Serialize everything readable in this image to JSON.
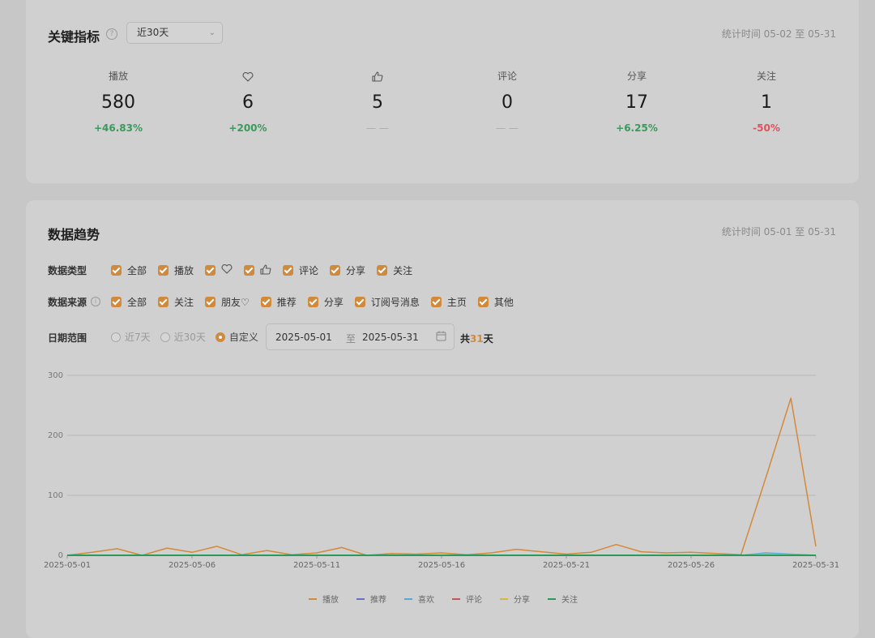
{
  "key_metrics": {
    "title": "关键指标",
    "period_select": "近30天",
    "stat_time": "统计时间 05-02 至 05-31",
    "items": [
      {
        "label": "播放",
        "icon": "",
        "value": "580",
        "change": "+46.83%",
        "trend": "up"
      },
      {
        "label": "",
        "icon": "heart-icon",
        "value": "6",
        "change": "+200%",
        "trend": "up"
      },
      {
        "label": "",
        "icon": "thumbs-up-icon",
        "value": "5",
        "change": "— —",
        "trend": "flat"
      },
      {
        "label": "评论",
        "icon": "",
        "value": "0",
        "change": "— —",
        "trend": "flat"
      },
      {
        "label": "分享",
        "icon": "",
        "value": "17",
        "change": "+6.25%",
        "trend": "up"
      },
      {
        "label": "关注",
        "icon": "",
        "value": "1",
        "change": "-50%",
        "trend": "down"
      }
    ]
  },
  "trend": {
    "title": "数据趋势",
    "stat_time": "统计时间 05-01 至 05-31",
    "data_type_label": "数据类型",
    "data_types": [
      "全部",
      "播放",
      "",
      "",
      "评论",
      "分享",
      "关注"
    ],
    "data_source_label": "数据来源",
    "data_sources": [
      "全部",
      "关注",
      "朋友♡",
      "推荐",
      "分享",
      "订阅号消息",
      "主页",
      "其他"
    ],
    "date_range_label": "日期范围",
    "range_options": [
      "近7天",
      "近30天",
      "自定义"
    ],
    "selected_range": "自定义",
    "start_date": "2025-05-01",
    "to_label": "至",
    "end_date": "2025-05-31",
    "total_prefix": "共",
    "total_days": "31",
    "total_suffix": "天"
  },
  "chart_data": {
    "type": "line",
    "ylim": [
      0,
      300
    ],
    "yticks": [
      0,
      100,
      200,
      300
    ],
    "x_tick_labels": [
      "2025-05-01",
      "2025-05-06",
      "2025-05-11",
      "2025-05-16",
      "2025-05-21",
      "2025-05-26",
      "2025-05-31"
    ],
    "x": [
      "2025-05-01",
      "2025-05-02",
      "2025-05-03",
      "2025-05-04",
      "2025-05-05",
      "2025-05-06",
      "2025-05-07",
      "2025-05-08",
      "2025-05-09",
      "2025-05-10",
      "2025-05-11",
      "2025-05-12",
      "2025-05-13",
      "2025-05-14",
      "2025-05-15",
      "2025-05-16",
      "2025-05-17",
      "2025-05-18",
      "2025-05-19",
      "2025-05-20",
      "2025-05-21",
      "2025-05-22",
      "2025-05-23",
      "2025-05-24",
      "2025-05-25",
      "2025-05-26",
      "2025-05-27",
      "2025-05-28",
      "2025-05-29",
      "2025-05-30",
      "2025-05-31"
    ],
    "grid": true,
    "legend_position": "bottom",
    "series": [
      {
        "name": "播放",
        "color": "#d4883a",
        "values": [
          0,
          5,
          11,
          0,
          12,
          5,
          15,
          1,
          8,
          1,
          4,
          13,
          0,
          3,
          2,
          4,
          1,
          4,
          10,
          6,
          2,
          5,
          18,
          6,
          4,
          5,
          3,
          1,
          130,
          262,
          15
        ]
      },
      {
        "name": "推荐",
        "color": "#6b6fc4",
        "values": [
          0,
          0,
          0,
          0,
          0,
          0,
          0,
          0,
          0,
          0,
          0,
          0,
          0,
          0,
          0,
          0,
          0,
          0,
          0,
          0,
          0,
          0,
          0,
          0,
          0,
          0,
          0,
          0,
          0,
          1,
          0
        ]
      },
      {
        "name": "喜欢",
        "color": "#59a9d6",
        "values": [
          0,
          0,
          0,
          0,
          0,
          0,
          0,
          0,
          0,
          0,
          0,
          0,
          0,
          0,
          0,
          0,
          0,
          0,
          0,
          0,
          0,
          0,
          0,
          0,
          0,
          0,
          0,
          0,
          4,
          2,
          0
        ]
      },
      {
        "name": "评论",
        "color": "#c85555",
        "values": [
          0,
          0,
          0,
          0,
          0,
          0,
          0,
          0,
          0,
          0,
          0,
          0,
          0,
          0,
          0,
          0,
          0,
          0,
          0,
          0,
          0,
          0,
          0,
          0,
          0,
          0,
          0,
          0,
          0,
          0,
          0
        ]
      },
      {
        "name": "分享",
        "color": "#d9b640",
        "values": [
          0,
          0,
          0,
          0,
          0,
          0,
          0,
          0,
          0,
          0,
          0,
          0,
          0,
          0,
          0,
          0,
          0,
          0,
          0,
          0,
          0,
          0,
          0,
          0,
          0,
          0,
          0,
          0,
          2,
          1,
          0
        ]
      },
      {
        "name": "关注",
        "color": "#2a9a5a",
        "values": [
          0,
          0,
          0,
          0,
          0,
          0,
          0,
          0,
          0,
          0,
          0,
          0,
          0,
          0,
          0,
          0,
          0,
          0,
          0,
          0,
          0,
          0,
          0,
          0,
          0,
          0,
          0,
          0,
          0,
          0,
          0
        ]
      }
    ]
  }
}
